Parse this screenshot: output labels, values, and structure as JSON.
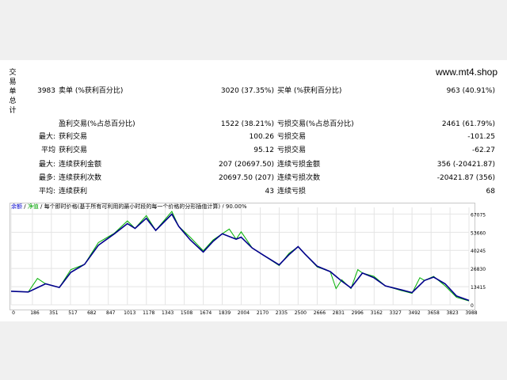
{
  "side_label": [
    "交",
    "易",
    "单",
    "总",
    "计"
  ],
  "site": "www.mt4.shop",
  "stats": {
    "row1": {
      "num": "3983",
      "label1": "卖单 (%获利百分比)",
      "value1": "3020 (37.35%)",
      "label2": "买单 (%获利百分比)",
      "value2": "963 (40.91%)"
    },
    "row2": {
      "label1": "盈利交易(%占总百分比)",
      "value1": "1522 (38.21%)",
      "label2": "亏损交易(%占总百分比)",
      "value2": "2461 (61.79%)"
    },
    "row3": {
      "prefix": "最大:",
      "label1": "获利交易",
      "value1": "100.26",
      "label2": "亏损交易",
      "value2": "-101.25"
    },
    "row4": {
      "prefix": "平均",
      "label1": "获利交易",
      "value1": "95.12",
      "label2": "亏损交易",
      "value2": "-62.27"
    },
    "row5": {
      "prefix": "最大:",
      "label1": "连续获利金额",
      "value1": "207 (20697.50)",
      "label2": "连续亏损金额",
      "value2": "356 (-20421.87)"
    },
    "row6": {
      "prefix": "最多:",
      "label1": "连续获利次数",
      "value1": "20697.50 (207)",
      "label2": "连续亏损次数",
      "value2": "-20421.87 (356)"
    },
    "row7": {
      "prefix": "平均:",
      "label1": "连续获利",
      "value1": "43",
      "label2": "连续亏损",
      "value2": "68"
    }
  },
  "legend": {
    "balance": "余额",
    "sep1": " / ",
    "equity": "净值",
    "rest": " / 每个即时价格(基于所有可利用的最小时段的每一个价格的分形插值计算) / 90.00%"
  },
  "colors": {
    "balance": "#00008b",
    "equity": "#00b000",
    "grid": "#e4e4e4"
  },
  "chart_data": {
    "type": "line",
    "x_ticks": [
      0,
      186,
      351,
      517,
      682,
      847,
      1013,
      1178,
      1343,
      1508,
      1674,
      1839,
      2004,
      2170,
      2335,
      2500,
      2666,
      2831,
      2996,
      3162,
      3327,
      3492,
      3658,
      3823,
      3988
    ],
    "y_ticks": [
      0,
      13415,
      26830,
      40245,
      53660,
      67075
    ],
    "xlim": [
      0,
      3988
    ],
    "ylim": [
      0,
      72000
    ],
    "series": [
      {
        "name": "余额",
        "x": [
          0,
          150,
          300,
          420,
          520,
          640,
          760,
          900,
          1013,
          1080,
          1178,
          1260,
          1400,
          1460,
          1560,
          1674,
          1760,
          1839,
          1960,
          2004,
          2100,
          2200,
          2335,
          2420,
          2500,
          2560,
          2666,
          2780,
          2880,
          2960,
          3060,
          3160,
          3260,
          3400,
          3492,
          3600,
          3680,
          3780,
          3880,
          3988
        ],
        "y": [
          10000,
          9500,
          15500,
          12800,
          24000,
          30000,
          44000,
          52500,
          60000,
          56500,
          64000,
          55000,
          67000,
          58000,
          48000,
          39000,
          47000,
          52500,
          48500,
          50000,
          42000,
          36500,
          29500,
          37000,
          43000,
          37500,
          28500,
          24500,
          17500,
          12500,
          23500,
          20000,
          14000,
          11000,
          9000,
          18000,
          20500,
          15500,
          6500,
          3200
        ]
      },
      {
        "name": "净值",
        "x": [
          0,
          150,
          230,
          300,
          420,
          520,
          640,
          760,
          900,
          1013,
          1080,
          1178,
          1260,
          1400,
          1460,
          1560,
          1674,
          1760,
          1839,
          1900,
          1960,
          2004,
          2100,
          2200,
          2335,
          2420,
          2500,
          2560,
          2666,
          2780,
          2830,
          2880,
          2960,
          3020,
          3060,
          3160,
          3260,
          3400,
          3492,
          3560,
          3600,
          3680,
          3780,
          3880,
          3988
        ],
        "y": [
          10000,
          9500,
          19500,
          15500,
          12800,
          26000,
          30000,
          46000,
          53000,
          62000,
          56500,
          66000,
          55000,
          69000,
          58000,
          50000,
          40000,
          48000,
          52500,
          56000,
          48500,
          54000,
          42000,
          36500,
          29000,
          38000,
          43000,
          37500,
          28000,
          24500,
          12000,
          18500,
          12000,
          26000,
          23500,
          21000,
          14000,
          10500,
          8500,
          20000,
          18000,
          21000,
          14000,
          5500,
          2800
        ]
      }
    ]
  }
}
